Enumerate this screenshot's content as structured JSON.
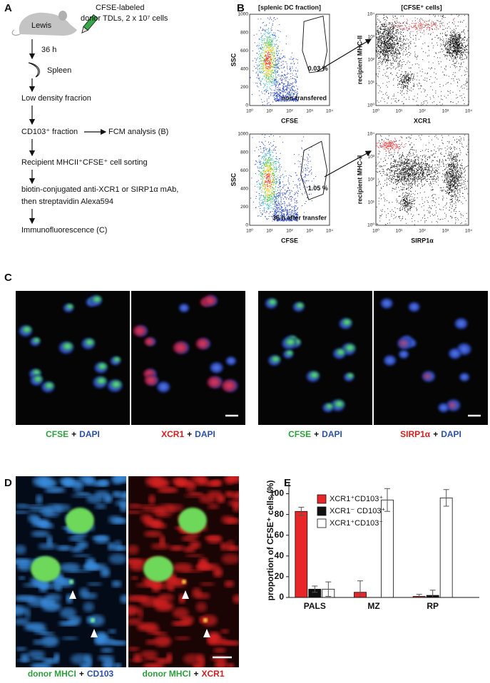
{
  "panels": {
    "A": {
      "label": "A",
      "mouse": "Lewis",
      "donor": [
        "CFSE-labeled",
        "donor TDLs, 2 x 10⁷ cells"
      ],
      "time": "36 h",
      "organ": "Spleen",
      "steps": [
        "Low density fracrion",
        "CD103⁺ fraction",
        "Recipient MHCII⁺CFSE⁺ cell sorting",
        "biotin-conjugated anti-XCR1 or SIRP1α mAb,",
        "then streptavidin Alexa594",
        "Immunofluorescence (C)"
      ],
      "side_step": "FCM analysis (B)"
    },
    "B": {
      "label": "B",
      "left_title": "[splenic DC fraction]",
      "right_title": "[CFSE⁺ cells]",
      "ssc_label": "SSC",
      "cfse_label": "CFSE",
      "mhc_label": "recipient MHC-II",
      "lin_ticks": [
        "0",
        "200",
        "400",
        "600",
        "800",
        "1000"
      ],
      "log_ticks": [
        "10⁰",
        "10¹",
        "10²",
        "10³",
        "10⁴"
      ],
      "plots": [
        {
          "gate": "0.03 %",
          "note": "non-transfered",
          "x_label": "XCR1"
        },
        {
          "gate": "1.05 %",
          "note": "36 h after transfer",
          "x_label": "SIRP1α"
        }
      ]
    },
    "C": {
      "label": "C",
      "captions": [
        [
          "CFSE",
          "+",
          "DAPI"
        ],
        [
          "XCR1",
          "+",
          "DAPI"
        ],
        [
          "CFSE",
          "+",
          "DAPI"
        ],
        [
          "SIRP1α",
          "+",
          "DAPI"
        ]
      ]
    },
    "D": {
      "label": "D",
      "captions": [
        [
          "donor MHCI",
          "+",
          "CD103"
        ],
        [
          "donor MHCI",
          "+",
          "XCR1"
        ]
      ]
    }
  },
  "chart_data": {
    "type": "bar",
    "panel_label": "E",
    "y_label": "proportion of CFSE⁺ cells (%)",
    "categories": [
      "PALS",
      "MZ",
      "RP"
    ],
    "series": [
      {
        "name": "XCR1⁺CD103⁺",
        "color": "#e8262a",
        "values": [
          83,
          5,
          1
        ],
        "errors": [
          4,
          11,
          2
        ]
      },
      {
        "name": "XCR1⁻ CD103⁺",
        "color": "#111111",
        "values": [
          8,
          0,
          2
        ],
        "errors": [
          3,
          0,
          5
        ]
      },
      {
        "name": "XCR1⁺CD103⁻",
        "color": "#ffffff",
        "values": [
          8,
          94,
          96
        ],
        "errors": [
          7,
          11,
          8
        ]
      }
    ],
    "ylim": [
      0,
      110
    ],
    "yticks": [
      0,
      20,
      40,
      60,
      80,
      100
    ],
    "legend": "upper left"
  }
}
